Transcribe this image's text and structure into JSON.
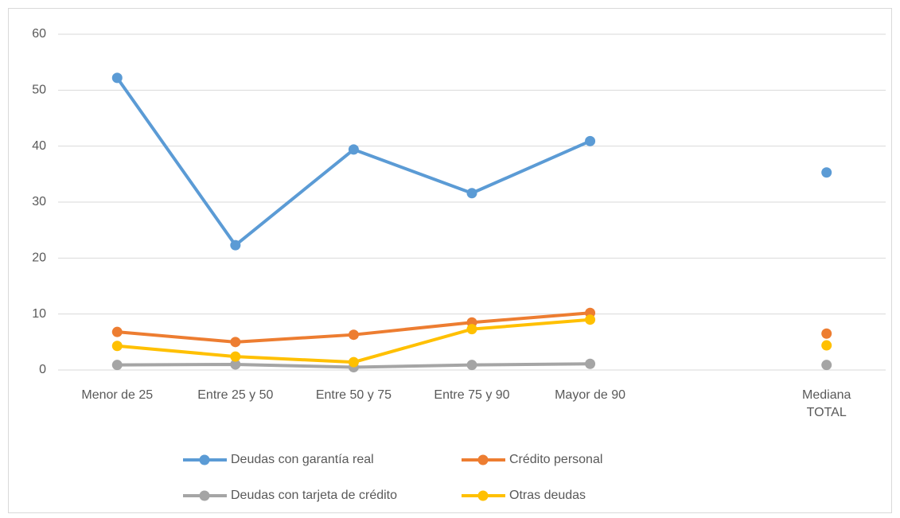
{
  "chart_data": {
    "type": "line",
    "categories": [
      "Menor de 25",
      "Entre 25 y 50",
      "Entre 50 y 75",
      "Entre 75 y 90",
      "Mayor de 90",
      null,
      "Mediana TOTAL"
    ],
    "series": [
      {
        "name": "Deudas con garantía real",
        "color": "#5b9bd5",
        "values": [
          52.2,
          22.3,
          39.4,
          31.6,
          40.9,
          null,
          35.3
        ]
      },
      {
        "name": "Crédito personal",
        "color": "#ed7d31",
        "values": [
          6.8,
          5.0,
          6.3,
          8.5,
          10.2,
          null,
          6.5
        ]
      },
      {
        "name": "Deudas con tarjeta de crédito",
        "color": "#a5a5a5",
        "values": [
          0.9,
          1.0,
          0.5,
          0.9,
          1.1,
          null,
          0.9
        ]
      },
      {
        "name": "Otras deudas",
        "color": "#ffc000",
        "values": [
          4.3,
          2.4,
          1.4,
          7.3,
          9.0,
          null,
          4.4
        ]
      }
    ],
    "ylim": [
      0,
      60
    ],
    "yticks": [
      0,
      10,
      20,
      30,
      40,
      50,
      60
    ],
    "grid": true,
    "legend": "bottom"
  }
}
